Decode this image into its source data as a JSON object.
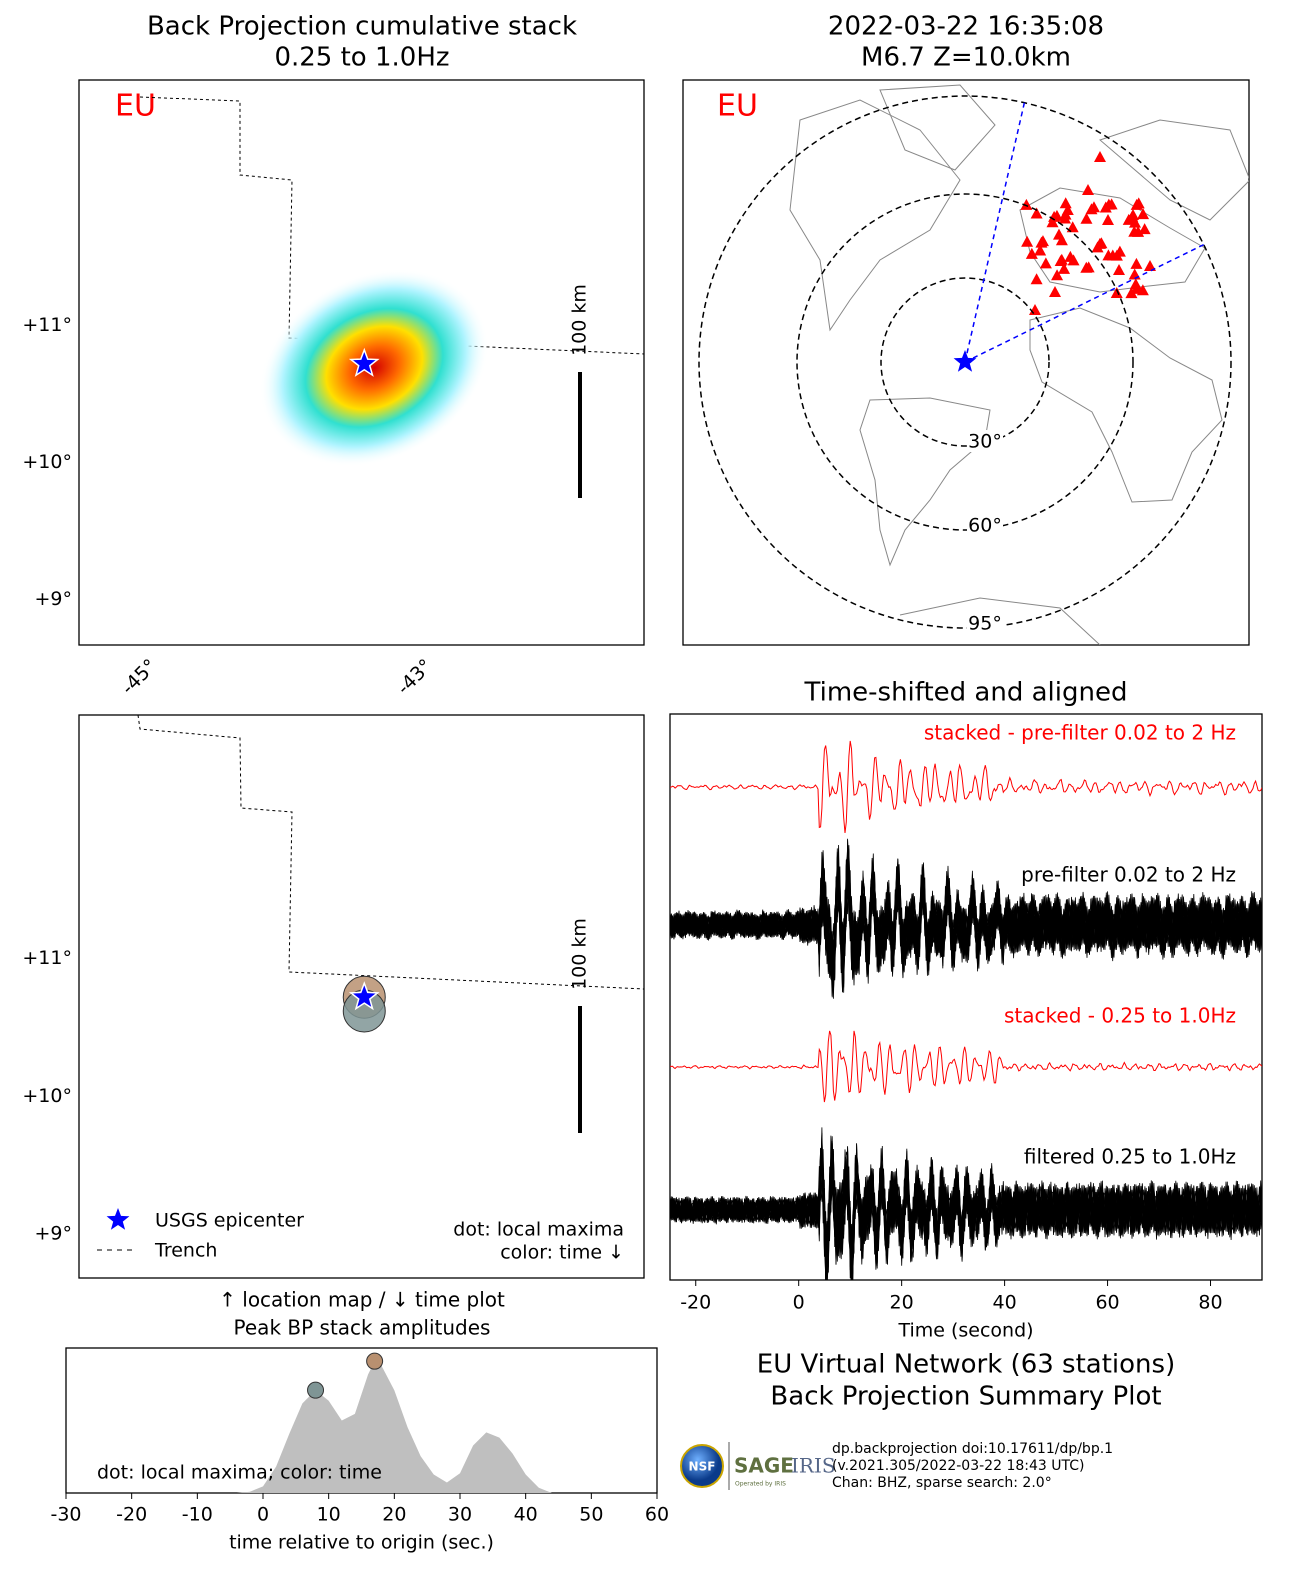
{
  "chart_data": [
    {
      "type": "map",
      "title": "Back Projection cumulative stack",
      "subtitle": "0.25 to 1.0Hz",
      "label": "EU",
      "xlim": [
        -45.5,
        -41.4
      ],
      "ylim": [
        8.67,
        12.79
      ],
      "xticks": [
        {
          "value": -45,
          "label": "-45°"
        },
        {
          "value": -43,
          "label": "-43°"
        }
      ],
      "yticks": [
        {
          "value": 9,
          "label": "+9°"
        },
        {
          "value": 10,
          "label": "+10°"
        },
        {
          "value": 11,
          "label": "+11°"
        }
      ],
      "scale_label": "100 km",
      "epicenter": {
        "lon": -43.43,
        "lat": 10.72
      }
    },
    {
      "type": "globe",
      "title": "2022-03-22 16:35:08",
      "subtitle": "M6.7 Z=10.0km",
      "label": "EU",
      "rings": [
        {
          "value": 30,
          "label": "30°"
        },
        {
          "value": 60,
          "label": "60°"
        },
        {
          "value": 95,
          "label": "95°"
        }
      ]
    },
    {
      "type": "map",
      "xlim": [
        -45.5,
        -41.4
      ],
      "ylim": [
        8.68,
        12.77
      ],
      "yticks": [
        {
          "value": 9,
          "label": "+9°"
        },
        {
          "value": 10,
          "label": "+10°"
        },
        {
          "value": 11,
          "label": "+11°"
        }
      ],
      "scale_label": "100 km",
      "epicenter": {
        "lon": -43.43,
        "lat": 10.72
      },
      "maxima": [
        {
          "lon": -43.43,
          "lat": 10.72,
          "color": "#b89070"
        },
        {
          "lon": -43.43,
          "lat": 10.62,
          "color": "#7f9595"
        }
      ],
      "legend": [
        "USGS epicenter",
        "Trench"
      ],
      "annotations": [
        "dot: local maxima",
        "color: time ↓"
      ]
    },
    {
      "type": "waveform",
      "title": "Time-shifted and aligned",
      "xlim": [
        -25,
        90
      ],
      "xticks": [
        -20,
        0,
        20,
        40,
        60,
        80
      ],
      "xlabel": "Time (second)",
      "traces": [
        {
          "name": "stacked - pre-filter 0.02 to 2 Hz",
          "color": "#ff0000"
        },
        {
          "name": "pre-filter 0.02 to 2 Hz",
          "color": "#000000"
        },
        {
          "name": "stacked - 0.25 to 1.0Hz",
          "color": "#ff0000"
        },
        {
          "name": "filtered 0.25 to 1.0Hz",
          "color": "#000000"
        }
      ]
    },
    {
      "type": "area",
      "title": "↑ location map / ↓ time plot",
      "subtitle": "Peak BP stack amplitudes",
      "x": [
        -4,
        -2,
        0,
        2,
        4,
        6,
        8,
        10,
        12,
        14,
        16,
        17,
        18,
        20,
        22,
        24,
        26,
        28,
        30,
        32,
        34,
        36,
        38,
        40,
        42,
        44
      ],
      "values": [
        0,
        0.01,
        0.05,
        0.2,
        0.45,
        0.68,
        0.78,
        0.7,
        0.55,
        0.6,
        0.9,
        1.0,
        0.97,
        0.78,
        0.5,
        0.28,
        0.14,
        0.08,
        0.15,
        0.36,
        0.46,
        0.42,
        0.3,
        0.14,
        0.04,
        0
      ],
      "color": "#bfbfbf",
      "xlim": [
        -30,
        60
      ],
      "ylim": [
        0,
        1.1
      ],
      "xticks": [
        -30,
        -20,
        -10,
        0,
        10,
        20,
        30,
        40,
        50,
        60
      ],
      "xlabel": "time relative to origin (sec.)",
      "annotation": "dot: local maxima; color: time",
      "maxima": {
        "x": [
          8,
          17
        ],
        "values": [
          0.78,
          1.0
        ],
        "colors": [
          "#7f9595",
          "#b89070"
        ]
      }
    }
  ],
  "footer": {
    "title": "EU Virtual Network (63 stations)",
    "subtitle": "Back Projection Summary Plot",
    "logos": [
      "NSF",
      "SAGE",
      "IRIS",
      "Operated by IRIS"
    ],
    "credits": [
      "dp.backprojection doi:10.17611/dp/bp.1",
      "(v.2021.305/2022-03-22 18:43 UTC)",
      "Chan: BHZ, sparse search: 2.0°"
    ]
  }
}
